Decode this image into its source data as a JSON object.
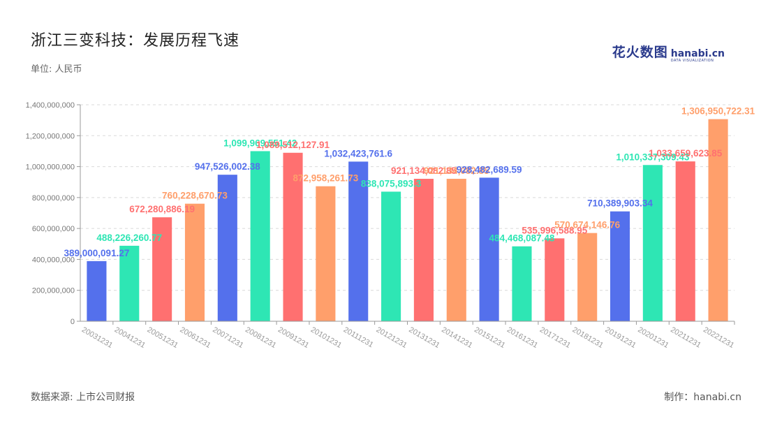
{
  "title": "浙江三变科技：发展历程飞速",
  "unit_label": "单位: 人民币",
  "logo": {
    "cn": "花火数图",
    "en": "hanabi.cn",
    "en_sub": "DATA VISUALIZATION"
  },
  "source": "数据来源: 上市公司财报",
  "maker": "制作：hanabi.cn",
  "chart_data": {
    "type": "bar",
    "title": "浙江三变科技：发展历程飞速",
    "ylabel": "",
    "xlabel": "",
    "ylim": [
      0,
      1400000000
    ],
    "yticks": [
      0,
      200000000,
      400000000,
      600000000,
      800000000,
      1000000000,
      1200000000,
      1400000000
    ],
    "grid": true,
    "categories": [
      "20031231",
      "20041231",
      "20051231",
      "20061231",
      "20071231",
      "20081231",
      "20091231",
      "20101231",
      "20111231",
      "20121231",
      "20131231",
      "20141231",
      "20151231",
      "20161231",
      "20171231",
      "20181231",
      "20191231",
      "20201231",
      "20211231",
      "20221231"
    ],
    "values": [
      389000091.27,
      488226260.77,
      672280886.19,
      760228670.73,
      947526002.38,
      1099969551.42,
      1089512127.91,
      872958261.73,
      1032423761.6,
      838075893.3,
      921134082.85,
      921134082.85,
      928482689.59,
      484468087.48,
      535996588.95,
      570674146.76,
      710389903.34,
      1010337309.43,
      1033659623.85,
      1306950722.31
    ],
    "labels": [
      "389,000,091.27",
      "488,226,260.77",
      "672,280,886.19",
      "760,228,670.73",
      "947,526,002.38",
      "1,099,969,551.42",
      "1,089,512,127.91",
      "872,958,261.73",
      "1,032,423,761.6",
      "838,075,893.3",
      "921,134,082.85",
      "921,134,082.85",
      "928,482,689.59",
      "484,468,087.48",
      "535,996,588.95",
      "570,674,146.76",
      "710,389,903.34",
      "1,010,337,309.43",
      "1,033,659,623.85",
      "1,306,950,722.31"
    ],
    "colors": [
      "#5470ec",
      "#2ee6b4",
      "#ff7070",
      "#ff9f6b"
    ]
  }
}
